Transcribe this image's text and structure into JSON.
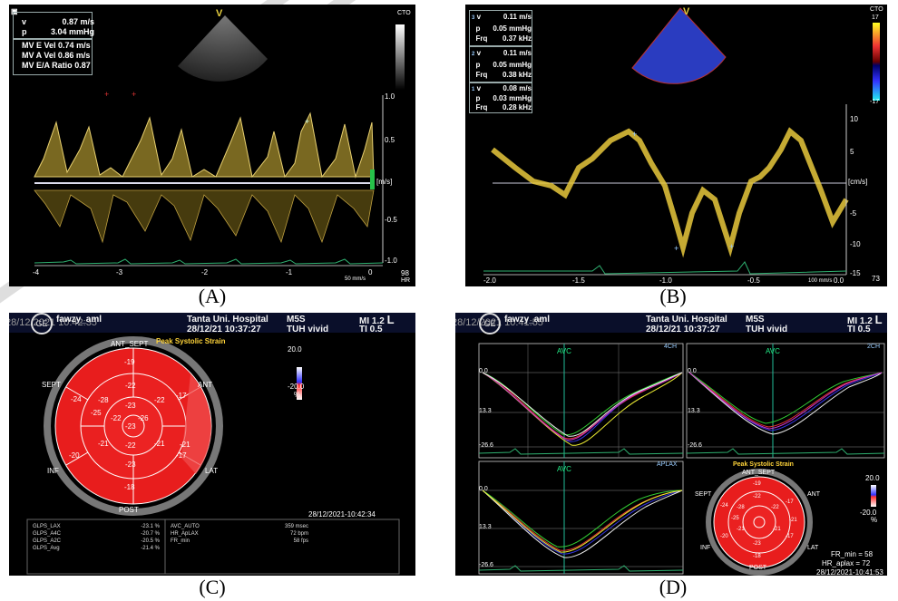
{
  "captions": {
    "a": "(A)",
    "b": "(B)",
    "c": "(C)",
    "d": "(D)"
  },
  "panel_a": {
    "sidebar_marks": [
      "▣",
      "v",
      "p",
      "1"
    ],
    "lines": [
      {
        "label": "v",
        "value": "0.87 m/s"
      },
      {
        "label": "p",
        "value": "3.04 mmHg"
      },
      {
        "label": "MV E Vel",
        "value": "0.74 m/s"
      },
      {
        "label": "MV A Vel",
        "value": "0.86 m/s"
      },
      {
        "label": "MV E/A Ratio",
        "value": "0.87"
      }
    ],
    "cto": "CTO",
    "unit": "[m/s]",
    "y_ticks": [
      "1.0",
      "0.5",
      "-0.5",
      "-1.0"
    ],
    "x_ticks": [
      "-4",
      "-3",
      "-2",
      "-1",
      "0"
    ],
    "hr_value": "98",
    "hr_label": "HR",
    "speed": "50 mm/s",
    "v_mark": "V"
  },
  "panel_b": {
    "groups": [
      {
        "n": "3",
        "v": "0.11 m/s",
        "p": "0.05 mmHg",
        "frq": "0.37 kHz"
      },
      {
        "n": "2",
        "v": "0.11 m/s",
        "p": "0.05 mmHg",
        "frq": "0.38 kHz"
      },
      {
        "n": "1",
        "v": "0.08 m/s",
        "p": "0.03 mmHg",
        "frq": "0.28 kHz"
      }
    ],
    "row_labels": {
      "v": "v",
      "p": "p",
      "frq": "Frq"
    },
    "cto": "CTO",
    "unit": "[cm/s]",
    "colorbar_top": "17",
    "colorbar_bottom": "-17",
    "y_ticks": [
      "10",
      "5",
      "-5",
      "-10",
      "-15"
    ],
    "x_ticks": [
      "-2.0",
      "-1.5",
      "-1.0",
      "-0.5",
      "0.0"
    ],
    "hr_value": "73",
    "speed": "100 mm/s",
    "v_mark": "V"
  },
  "panel_c": {
    "timestamp": "28/12/2021 10:42:35",
    "user": "fawzy_aml",
    "hospital": "Tanta Uni. Hospital",
    "datetime": "28/12/21 10:37:27",
    "probe": "M5S",
    "system": "TUH vivid",
    "mi": "MI 1.2",
    "ti": "TI 0.5",
    "l_mark": "L",
    "title": "Peak Systolic Strain",
    "scale_top": "20.0",
    "scale_bottom": "-20.0",
    "scale_unit": "%",
    "labels": {
      "ant_sept": "ANT_SEPT",
      "ant": "ANT",
      "sept": "SEPT",
      "inf": "INF",
      "lat": "LAT",
      "post": "POST"
    },
    "segments_outer": [
      "-19",
      "-17",
      "-21",
      "-17",
      "-18",
      "-20",
      "-24"
    ],
    "segments_mid": [
      "-22",
      "-22",
      "-21",
      "-23",
      "-21",
      "-25",
      "-28"
    ],
    "segments_inner": [
      "-23",
      "-26",
      "-22",
      "-22"
    ],
    "apex": "-23",
    "footer_date": "28/12/2021-10:42:34",
    "metrics_left": [
      {
        "k": "GLPS_LAX",
        "v": "-23.1 %"
      },
      {
        "k": "GLPS_A4C",
        "v": "-20.7 %"
      },
      {
        "k": "GLPS_A2C",
        "v": "-20.5 %"
      },
      {
        "k": "GLPS_Avg",
        "v": "-21.4 %"
      }
    ],
    "metrics_right": [
      {
        "k": "AVC_AUTO",
        "v": "359 msec"
      },
      {
        "k": "HR_ApLAX",
        "v": "72 bpm"
      },
      {
        "k": "FR_min",
        "v": "58 fps"
      }
    ]
  },
  "panel_d": {
    "timestamp": "28/12/2021 10:41:55",
    "user": "fawzy_aml",
    "hospital": "Tanta Uni. Hospital",
    "datetime": "28/12/21 10:37:27",
    "probe": "M5S",
    "system": "TUH vivid",
    "mi": "MI 1.2",
    "ti": "TI 0.5",
    "l_mark": "L",
    "plots": [
      {
        "view": "4CH",
        "avc": "AVC",
        "y_ticks": [
          "0.0",
          "13.3",
          "-26.6"
        ]
      },
      {
        "view": "2CH",
        "avc": "AVC",
        "y_ticks": [
          "0.0",
          "13.3",
          "-26.6"
        ]
      },
      {
        "view": "APLAX",
        "avc": "AVC",
        "y_ticks": [
          "0.0",
          "13.3",
          "-26.6"
        ]
      }
    ],
    "title": "Peak Systolic Strain",
    "scale_top": "20.0",
    "scale_bottom": "-20.0",
    "scale_unit": "%",
    "labels": {
      "ant_sept": "ANT_SEPT",
      "ant": "ANT",
      "sept": "SEPT",
      "inf": "INF",
      "lat": "LAT",
      "post": "POST"
    },
    "segments_outer": [
      "-19",
      "-17",
      "-21",
      "-17",
      "-18",
      "-20",
      "-24"
    ],
    "segments_mid": [
      "-22",
      "-22",
      "-21",
      "-23",
      "-21",
      "-25",
      "-28"
    ],
    "fr_min": "FR_min = 58",
    "hr_aplax": "HR_aplax = 72",
    "footer_date": "28/12/2021-10:41:53"
  }
}
